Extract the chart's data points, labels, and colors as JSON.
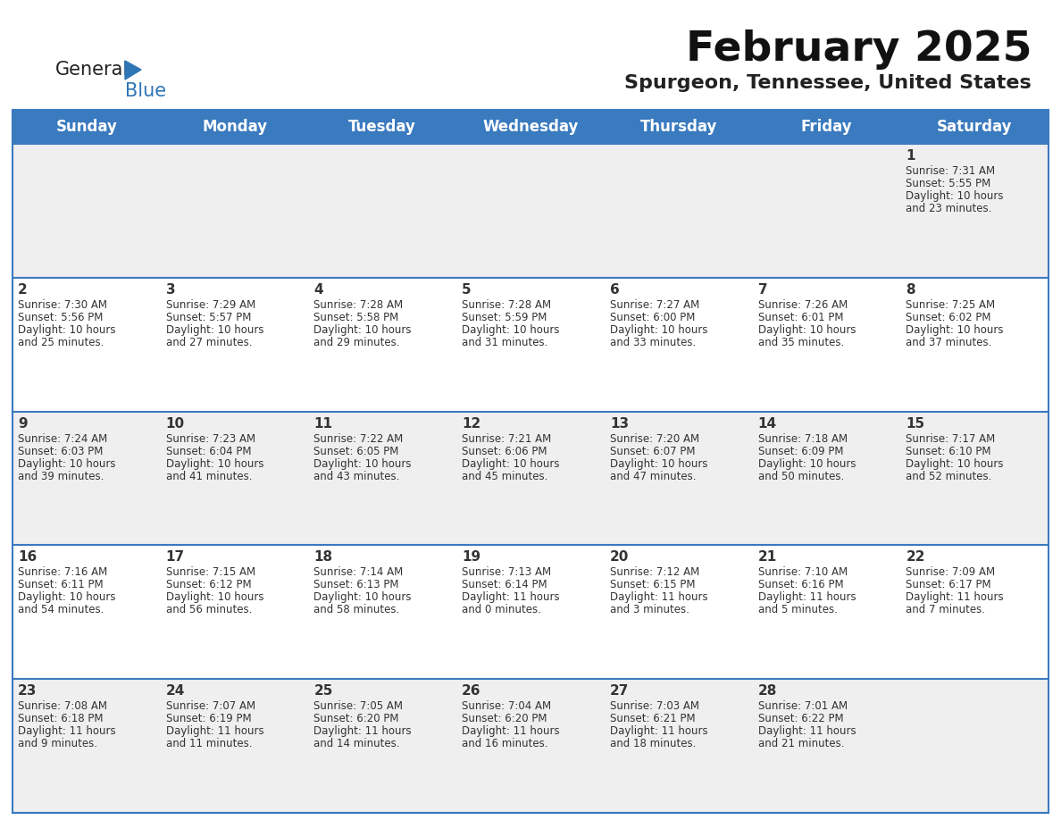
{
  "title": "February 2025",
  "subtitle": "Spurgeon, Tennessee, United States",
  "header_color": "#3a7abf",
  "header_text_color": "#ffffff",
  "day_names": [
    "Sunday",
    "Monday",
    "Tuesday",
    "Wednesday",
    "Thursday",
    "Friday",
    "Saturday"
  ],
  "bg_color": "#ffffff",
  "cell_bg_light": "#efefef",
  "cell_bg_white": "#ffffff",
  "border_color": "#3a7abf",
  "text_color": "#333333",
  "calendar": [
    [
      null,
      null,
      null,
      null,
      null,
      null,
      {
        "day": 1,
        "sunrise": "7:31 AM",
        "sunset": "5:55 PM",
        "daylight": "10 hours",
        "daylight2": "and 23 minutes."
      }
    ],
    [
      {
        "day": 2,
        "sunrise": "7:30 AM",
        "sunset": "5:56 PM",
        "daylight": "10 hours",
        "daylight2": "and 25 minutes."
      },
      {
        "day": 3,
        "sunrise": "7:29 AM",
        "sunset": "5:57 PM",
        "daylight": "10 hours",
        "daylight2": "and 27 minutes."
      },
      {
        "day": 4,
        "sunrise": "7:28 AM",
        "sunset": "5:58 PM",
        "daylight": "10 hours",
        "daylight2": "and 29 minutes."
      },
      {
        "day": 5,
        "sunrise": "7:28 AM",
        "sunset": "5:59 PM",
        "daylight": "10 hours",
        "daylight2": "and 31 minutes."
      },
      {
        "day": 6,
        "sunrise": "7:27 AM",
        "sunset": "6:00 PM",
        "daylight": "10 hours",
        "daylight2": "and 33 minutes."
      },
      {
        "day": 7,
        "sunrise": "7:26 AM",
        "sunset": "6:01 PM",
        "daylight": "10 hours",
        "daylight2": "and 35 minutes."
      },
      {
        "day": 8,
        "sunrise": "7:25 AM",
        "sunset": "6:02 PM",
        "daylight": "10 hours",
        "daylight2": "and 37 minutes."
      }
    ],
    [
      {
        "day": 9,
        "sunrise": "7:24 AM",
        "sunset": "6:03 PM",
        "daylight": "10 hours",
        "daylight2": "and 39 minutes."
      },
      {
        "day": 10,
        "sunrise": "7:23 AM",
        "sunset": "6:04 PM",
        "daylight": "10 hours",
        "daylight2": "and 41 minutes."
      },
      {
        "day": 11,
        "sunrise": "7:22 AM",
        "sunset": "6:05 PM",
        "daylight": "10 hours",
        "daylight2": "and 43 minutes."
      },
      {
        "day": 12,
        "sunrise": "7:21 AM",
        "sunset": "6:06 PM",
        "daylight": "10 hours",
        "daylight2": "and 45 minutes."
      },
      {
        "day": 13,
        "sunrise": "7:20 AM",
        "sunset": "6:07 PM",
        "daylight": "10 hours",
        "daylight2": "and 47 minutes."
      },
      {
        "day": 14,
        "sunrise": "7:18 AM",
        "sunset": "6:09 PM",
        "daylight": "10 hours",
        "daylight2": "and 50 minutes."
      },
      {
        "day": 15,
        "sunrise": "7:17 AM",
        "sunset": "6:10 PM",
        "daylight": "10 hours",
        "daylight2": "and 52 minutes."
      }
    ],
    [
      {
        "day": 16,
        "sunrise": "7:16 AM",
        "sunset": "6:11 PM",
        "daylight": "10 hours",
        "daylight2": "and 54 minutes."
      },
      {
        "day": 17,
        "sunrise": "7:15 AM",
        "sunset": "6:12 PM",
        "daylight": "10 hours",
        "daylight2": "and 56 minutes."
      },
      {
        "day": 18,
        "sunrise": "7:14 AM",
        "sunset": "6:13 PM",
        "daylight": "10 hours",
        "daylight2": "and 58 minutes."
      },
      {
        "day": 19,
        "sunrise": "7:13 AM",
        "sunset": "6:14 PM",
        "daylight": "11 hours",
        "daylight2": "and 0 minutes."
      },
      {
        "day": 20,
        "sunrise": "7:12 AM",
        "sunset": "6:15 PM",
        "daylight": "11 hours",
        "daylight2": "and 3 minutes."
      },
      {
        "day": 21,
        "sunrise": "7:10 AM",
        "sunset": "6:16 PM",
        "daylight": "11 hours",
        "daylight2": "and 5 minutes."
      },
      {
        "day": 22,
        "sunrise": "7:09 AM",
        "sunset": "6:17 PM",
        "daylight": "11 hours",
        "daylight2": "and 7 minutes."
      }
    ],
    [
      {
        "day": 23,
        "sunrise": "7:08 AM",
        "sunset": "6:18 PM",
        "daylight": "11 hours",
        "daylight2": "and 9 minutes."
      },
      {
        "day": 24,
        "sunrise": "7:07 AM",
        "sunset": "6:19 PM",
        "daylight": "11 hours",
        "daylight2": "and 11 minutes."
      },
      {
        "day": 25,
        "sunrise": "7:05 AM",
        "sunset": "6:20 PM",
        "daylight": "11 hours",
        "daylight2": "and 14 minutes."
      },
      {
        "day": 26,
        "sunrise": "7:04 AM",
        "sunset": "6:20 PM",
        "daylight": "11 hours",
        "daylight2": "and 16 minutes."
      },
      {
        "day": 27,
        "sunrise": "7:03 AM",
        "sunset": "6:21 PM",
        "daylight": "11 hours",
        "daylight2": "and 18 minutes."
      },
      {
        "day": 28,
        "sunrise": "7:01 AM",
        "sunset": "6:22 PM",
        "daylight": "11 hours",
        "daylight2": "and 21 minutes."
      },
      null
    ]
  ],
  "logo_triangle_color": "#2e75b6",
  "title_fontsize": 34,
  "subtitle_fontsize": 16,
  "header_fontsize": 12,
  "day_number_fontsize": 11,
  "cell_text_fontsize": 8.5
}
